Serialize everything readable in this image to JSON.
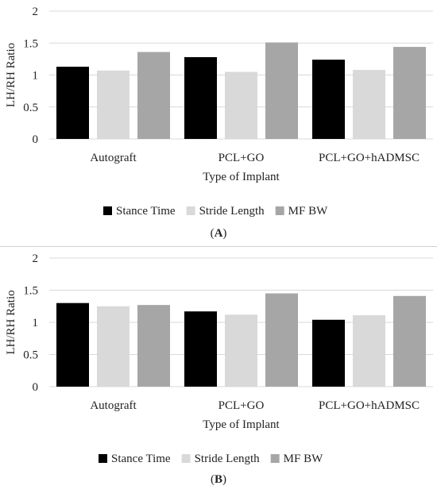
{
  "colors": {
    "stance_time": "#000000",
    "stride_length": "#d9d9d9",
    "mf_bw": "#a6a6a6",
    "grid": "#d9d9d9",
    "axis_text": "#222222"
  },
  "chart_data": [
    {
      "panel": "A",
      "type": "bar",
      "ylabel": "LH/RH Ratio",
      "xlabel": "Type of Implant",
      "ylim": [
        0,
        2
      ],
      "yticks": [
        "0",
        "0.5",
        "1",
        "1.5",
        "2"
      ],
      "categories": [
        "Autograft",
        "PCL+GO",
        "PCL+GO+hADMSC"
      ],
      "series": [
        {
          "name": "Stance Time",
          "values": [
            1.13,
            1.28,
            1.24
          ]
        },
        {
          "name": "Stride Length",
          "values": [
            1.07,
            1.05,
            1.08
          ]
        },
        {
          "name": "MF BW",
          "values": [
            1.36,
            1.51,
            1.44
          ]
        }
      ],
      "grid": true,
      "legend": "bottom"
    },
    {
      "panel": "B",
      "type": "bar",
      "ylabel": "LH/RH Ratio",
      "xlabel": "Type of Implant",
      "ylim": [
        0,
        2
      ],
      "yticks": [
        "0",
        "0.5",
        "1",
        "1.5",
        "2"
      ],
      "categories": [
        "Autograft",
        "PCL+GO",
        "PCL+GO+hADMSC"
      ],
      "series": [
        {
          "name": "Stance Time",
          "values": [
            1.3,
            1.17,
            1.04
          ]
        },
        {
          "name": "Stride Length",
          "values": [
            1.25,
            1.12,
            1.11
          ]
        },
        {
          "name": "MF BW",
          "values": [
            1.27,
            1.45,
            1.41
          ]
        }
      ],
      "grid": true,
      "legend": "bottom"
    }
  ],
  "captions": {
    "a": {
      "open": "(",
      "letter": "A",
      "close": ")"
    },
    "b": {
      "open": "(",
      "letter": "B",
      "close": ")"
    }
  }
}
